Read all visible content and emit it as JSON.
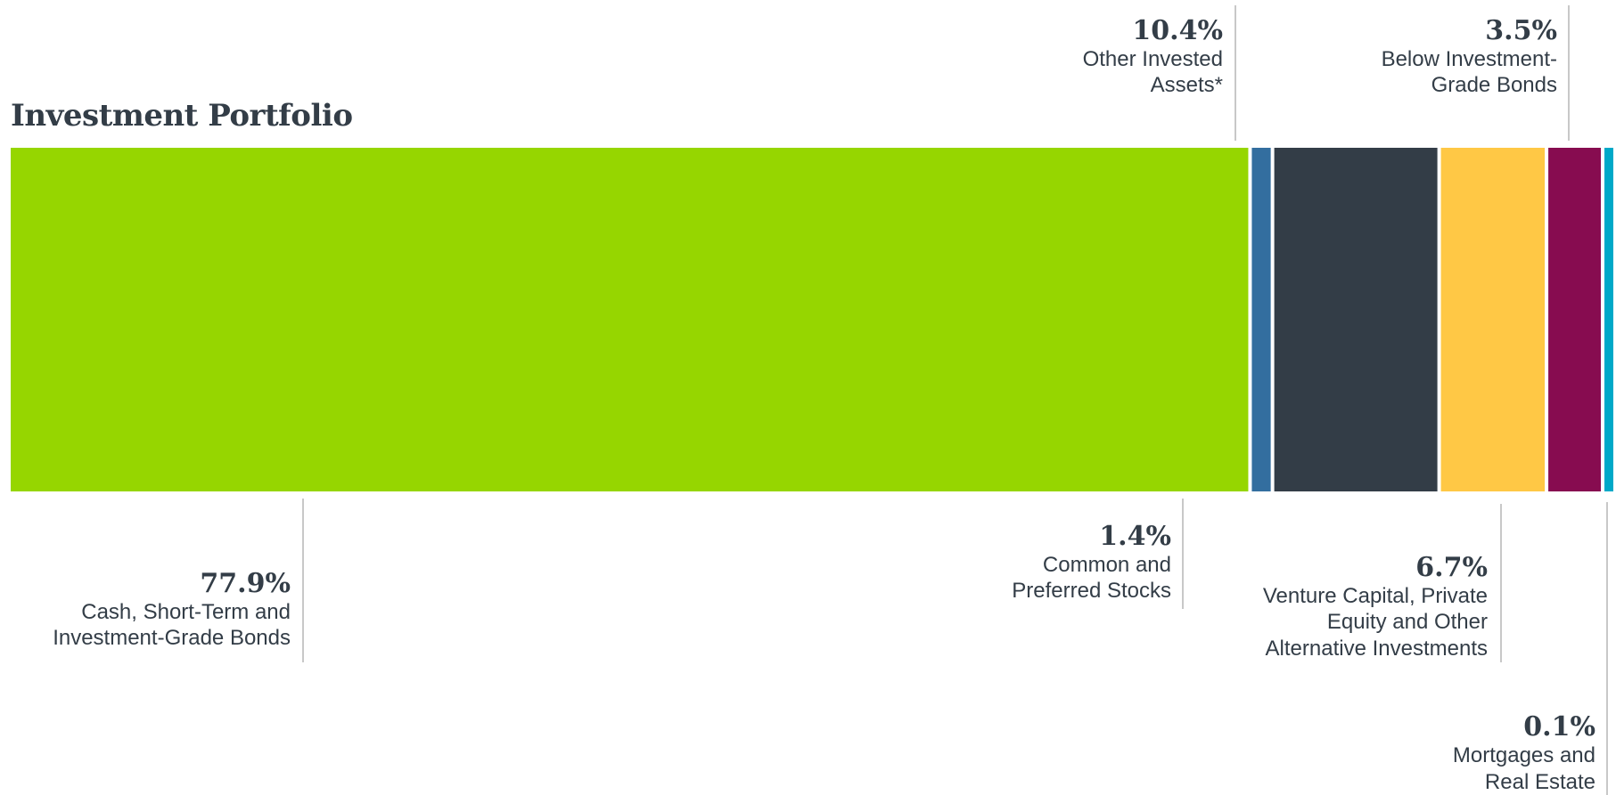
{
  "chart_data": {
    "type": "bar",
    "orientation": "horizontal-stacked",
    "title": "Investment Portfolio",
    "unit": "%",
    "total": 100,
    "segments": [
      {
        "key": "cash",
        "pct_label": "77.9%",
        "value": 77.9,
        "label_lines": [
          "Cash, Short-Term and",
          "Investment-Grade Bonds"
        ],
        "color": "#96d600",
        "label_side": "bottom"
      },
      {
        "key": "stocks",
        "pct_label": "1.4%",
        "value": 1.4,
        "label_lines": [
          "Common and",
          "Preferred Stocks"
        ],
        "color": "#336e9f",
        "label_side": "bottom"
      },
      {
        "key": "other",
        "pct_label": "10.4%",
        "value": 10.4,
        "label_lines": [
          "Other Invested",
          "Assets*"
        ],
        "color": "#333d47",
        "label_side": "top"
      },
      {
        "key": "venture",
        "pct_label": "6.7%",
        "value": 6.7,
        "label_lines": [
          "Venture Capital, Private",
          "Equity and Other",
          "Alternative Investments"
        ],
        "color": "#ffc845",
        "label_side": "bottom"
      },
      {
        "key": "below",
        "pct_label": "3.5%",
        "value": 3.5,
        "label_lines": [
          "Below Investment-",
          "Grade Bonds"
        ],
        "color": "#870c50",
        "label_side": "top"
      },
      {
        "key": "mortgages",
        "pct_label": "0.1%",
        "value": 0.1,
        "label_lines": [
          "Mortgages and",
          "Real Estate"
        ],
        "color": "#00a9c8",
        "label_side": "bottom"
      }
    ]
  }
}
